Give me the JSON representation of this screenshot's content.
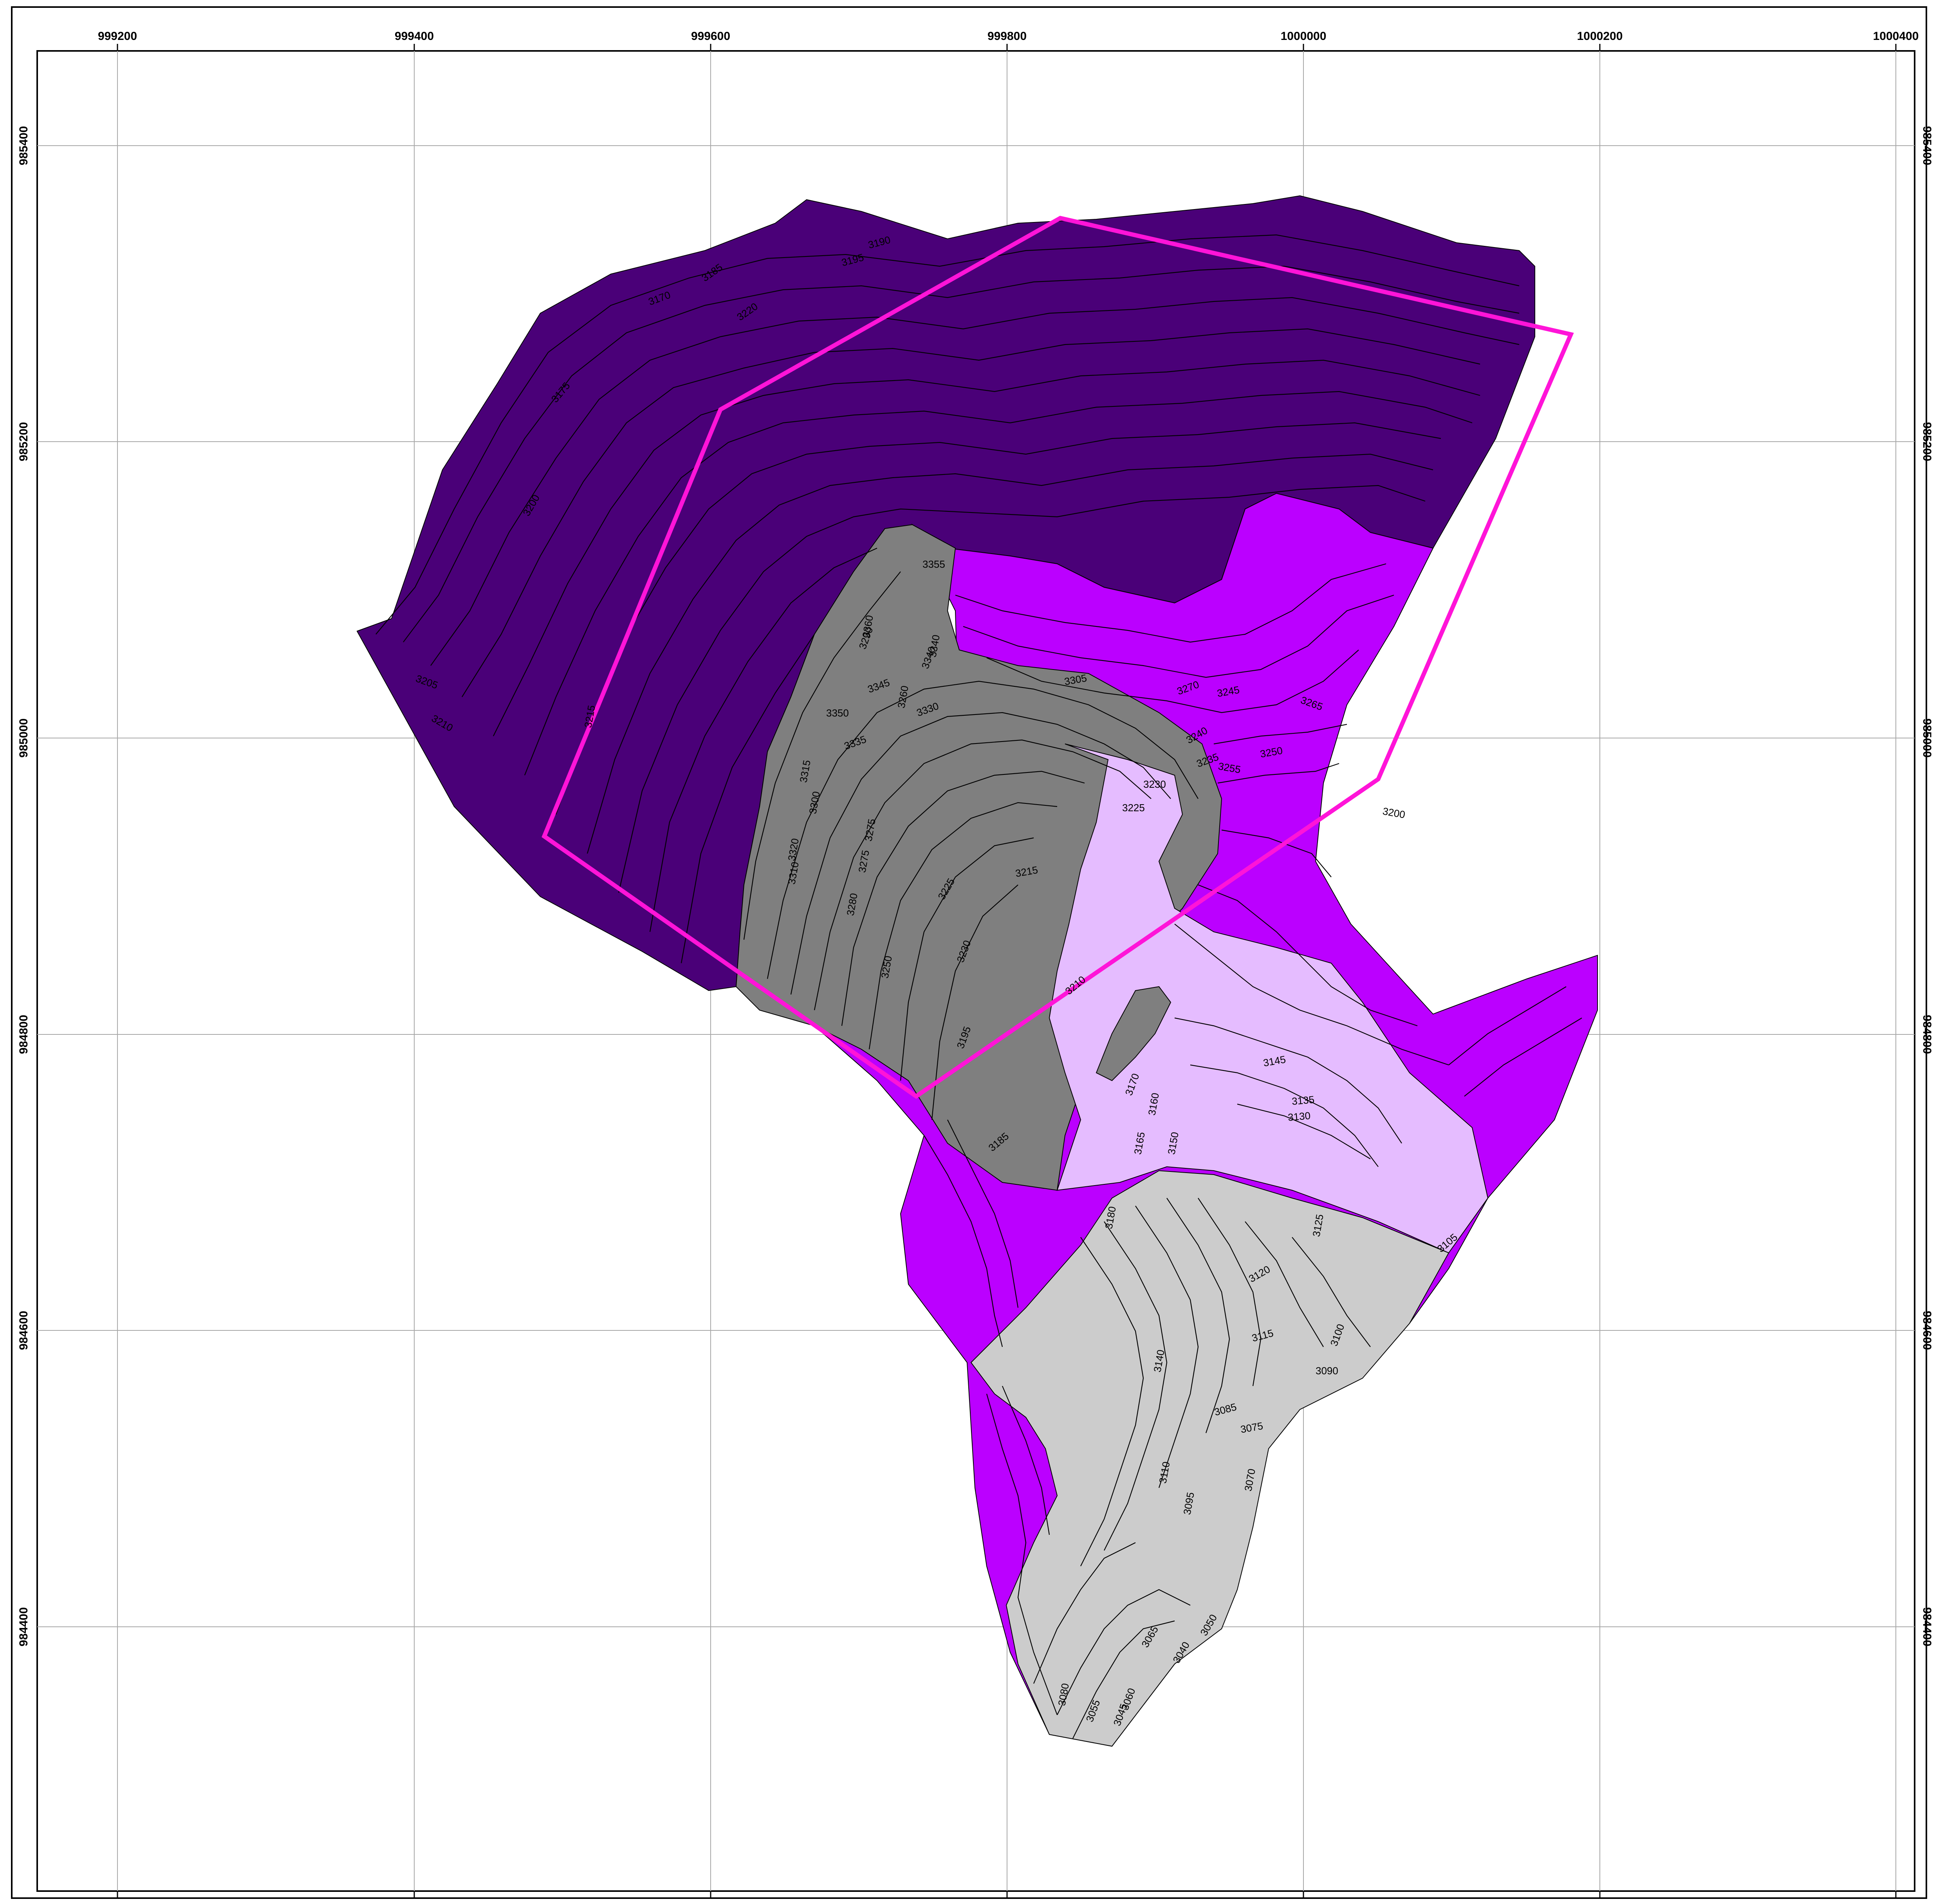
{
  "map": {
    "x_ticks": [
      "999200",
      "999400",
      "999600",
      "999800",
      "1000000",
      "1000200",
      "1000400"
    ],
    "y_ticks": [
      "985400",
      "985200",
      "985000",
      "984800",
      "984600",
      "984400"
    ],
    "zone_colors": {
      "dark_purple": "#4a0078",
      "magenta": "#bb00ff",
      "dark_gray": "#7f7f7f",
      "lavender": "#e5bcff",
      "light_gray": "#cccccc",
      "boundary_outline": "#ff14d8"
    },
    "contour_labels": [
      "3190",
      "3195",
      "3170",
      "3175",
      "3185",
      "3200",
      "3205",
      "3210",
      "3215",
      "3220",
      "3225",
      "3230",
      "3235",
      "3240",
      "3245",
      "3250",
      "3255",
      "3260",
      "3265",
      "3270",
      "3275",
      "3280",
      "3290",
      "3300",
      "3310",
      "3315",
      "3320",
      "3330",
      "3335",
      "3340",
      "3345",
      "3350",
      "3355",
      "3360",
      "3340",
      "3305",
      "3275",
      "3250",
      "3230",
      "3225",
      "3215",
      "3210",
      "3200",
      "3195",
      "3185",
      "3180",
      "3170",
      "3165",
      "3160",
      "3150",
      "3145",
      "3140",
      "3135",
      "3130",
      "3125",
      "3120",
      "3115",
      "3110",
      "3105",
      "3100",
      "3095",
      "3090",
      "3085",
      "3080",
      "3075",
      "3070",
      "3065",
      "3060",
      "3055",
      "3050",
      "3045",
      "3040"
    ]
  }
}
